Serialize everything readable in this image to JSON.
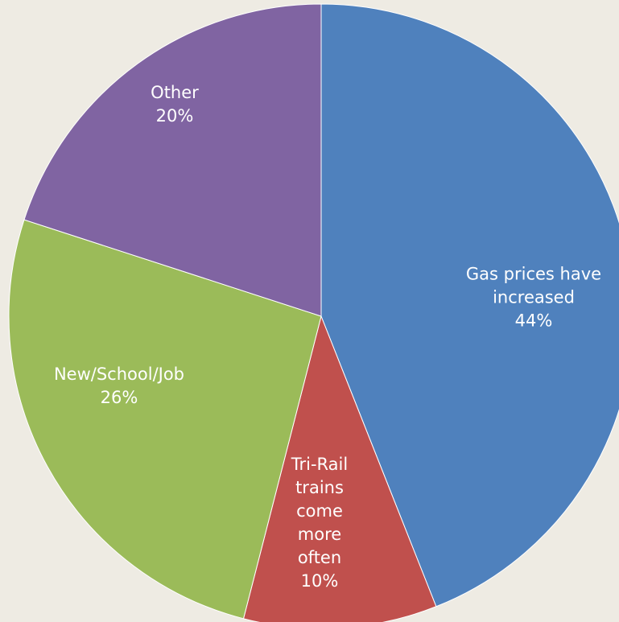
{
  "chart_data": {
    "type": "pie",
    "categories": [
      "Gas prices have increased",
      "Tri-Rail trains come more often",
      "New/School/Job",
      "Other"
    ],
    "values": [
      44,
      10,
      26,
      20
    ],
    "value_labels": [
      "44%",
      "10%",
      "26%",
      "20%"
    ],
    "colors": [
      "#4f81bd",
      "#c0504d",
      "#9bbb59",
      "#8064a2"
    ]
  }
}
